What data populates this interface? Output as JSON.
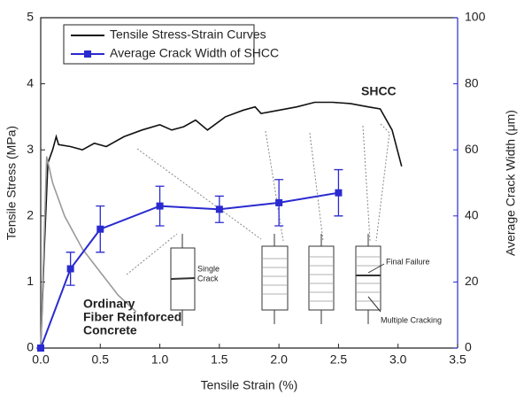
{
  "chart_data": {
    "type": "line",
    "xlabel": "Tensile Strain (%)",
    "ylabel": "Tensile Stress (MPa)",
    "y2label": "Average Crack Width (μm)",
    "xlim": [
      0,
      3.5
    ],
    "xticks": [
      {
        "value": 0,
        "label": "0.0"
      },
      0.5,
      {
        "value": 1,
        "label": "1.0"
      },
      1.5,
      {
        "value": 2,
        "label": "2.0"
      },
      2.5,
      {
        "value": 3,
        "label": "3.0"
      },
      3.5
    ],
    "ylim": [
      0,
      5
    ],
    "yticks": [
      0,
      1,
      2,
      3,
      4,
      5
    ],
    "y2lim": [
      0,
      100
    ],
    "y2ticks": [
      0,
      20,
      40,
      60,
      80,
      100
    ],
    "legend": "upper left",
    "series": [
      {
        "name": "Tensile Stress-Strain Curves",
        "color": "#111111",
        "x": [
          0,
          0.03,
          0.06,
          0.1,
          0.13,
          0.15,
          0.25,
          0.35,
          0.45,
          0.55,
          0.7,
          0.85,
          1.0,
          1.1,
          1.2,
          1.3,
          1.4,
          1.55,
          1.7,
          1.8,
          1.85,
          2.0,
          2.15,
          2.3,
          2.45,
          2.6,
          2.75,
          2.85,
          2.95,
          3.03
        ],
        "values": [
          0,
          1.5,
          2.8,
          3.0,
          3.2,
          3.08,
          3.05,
          3.0,
          3.1,
          3.05,
          3.2,
          3.3,
          3.38,
          3.3,
          3.35,
          3.45,
          3.3,
          3.5,
          3.6,
          3.65,
          3.55,
          3.6,
          3.65,
          3.72,
          3.72,
          3.7,
          3.65,
          3.62,
          3.3,
          2.75
        ]
      },
      {
        "color": "#9a9a9a",
        "x": [
          0,
          0.05,
          0.1,
          0.2,
          0.35,
          0.5,
          0.65,
          0.8
        ],
        "values": [
          0,
          2.9,
          2.5,
          2.0,
          1.5,
          1.15,
          0.8,
          0.55
        ]
      },
      {
        "name": "Average Crack Width of SHCC",
        "color": "#2a2ad0",
        "axis": "y2",
        "marker": "square",
        "x": [
          0,
          0.25,
          0.5,
          1.0,
          1.5,
          2.0,
          2.5
        ],
        "values": [
          0,
          24,
          36,
          43,
          42,
          44,
          47
        ],
        "errors": [
          0,
          5,
          7,
          6,
          4,
          7,
          7
        ]
      }
    ],
    "annotations": {
      "shcc": "SHCC",
      "ofrc": [
        "Ordinary",
        "Fiber Reinforced",
        "Concrete"
      ],
      "single": [
        "Single",
        "Crack"
      ],
      "final": "Final Failure",
      "multiple": "Multiple Cracking"
    }
  }
}
